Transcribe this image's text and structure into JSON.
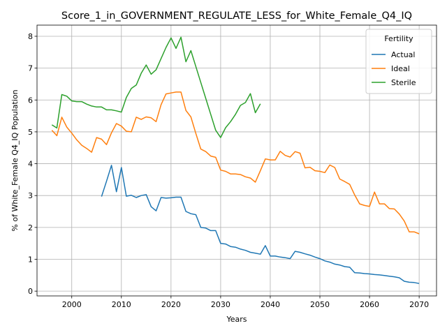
{
  "chart_data": {
    "type": "line",
    "title": "Score_1_in_GOVERNMENT_REGULATE_LESS_for_White_Female_Q4_IQ",
    "xlabel": "Years",
    "ylabel": "% of White_Female Q4_IQ Population",
    "xlim": [
      1993,
      2073.5
    ],
    "ylim": [
      -0.15,
      8.35
    ],
    "xticks": [
      2000,
      2010,
      2020,
      2030,
      2040,
      2050,
      2060,
      2070
    ],
    "yticks": [
      0,
      1,
      2,
      3,
      4,
      5,
      6,
      7,
      8
    ],
    "grid": true,
    "legend": {
      "title": "Fertility",
      "position": "top-right"
    },
    "series": [
      {
        "name": "Actual",
        "color": "#1f77b4",
        "x": [
          2006,
          2007,
          2008,
          2009,
          2010,
          2011,
          2012,
          2013,
          2014,
          2015,
          2016,
          2017,
          2018,
          2019,
          2020,
          2021,
          2022,
          2023,
          2024,
          2025,
          2026,
          2027,
          2028,
          2029,
          2030,
          2031,
          2032,
          2033,
          2034,
          2035,
          2036,
          2037,
          2038,
          2039,
          2040,
          2041,
          2042,
          2043,
          2044,
          2045,
          2046,
          2047,
          2048,
          2049,
          2050,
          2051,
          2052,
          2053,
          2054,
          2055,
          2056,
          2057,
          2058,
          2059,
          2060,
          2061,
          2062,
          2063,
          2064,
          2065,
          2066,
          2067,
          2068,
          2069,
          2070
        ],
        "values": [
          2.97,
          3.45,
          3.95,
          3.12,
          3.88,
          2.98,
          3.01,
          2.94,
          3.0,
          3.03,
          2.65,
          2.52,
          2.94,
          2.92,
          2.93,
          2.95,
          2.95,
          2.5,
          2.43,
          2.4,
          2.0,
          1.98,
          1.9,
          1.9,
          1.5,
          1.48,
          1.4,
          1.38,
          1.32,
          1.28,
          1.22,
          1.19,
          1.16,
          1.43,
          1.1,
          1.1,
          1.07,
          1.05,
          1.02,
          1.25,
          1.22,
          1.17,
          1.13,
          1.07,
          1.02,
          0.95,
          0.91,
          0.85,
          0.82,
          0.77,
          0.75,
          0.58,
          0.57,
          0.55,
          0.54,
          0.52,
          0.51,
          0.49,
          0.47,
          0.45,
          0.42,
          0.31,
          0.28,
          0.27,
          0.24
        ]
      },
      {
        "name": "Ideal",
        "color": "#ff7f0e",
        "x": [
          1996,
          1997,
          1998,
          1999,
          2000,
          2001,
          2002,
          2003,
          2004,
          2005,
          2006,
          2007,
          2008,
          2009,
          2010,
          2011,
          2012,
          2013,
          2014,
          2015,
          2016,
          2017,
          2018,
          2019,
          2020,
          2021,
          2022,
          2023,
          2024,
          2025,
          2026,
          2027,
          2028,
          2029,
          2030,
          2031,
          2032,
          2033,
          2034,
          2035,
          2036,
          2037,
          2038,
          2039,
          2040,
          2041,
          2042,
          2043,
          2044,
          2045,
          2046,
          2047,
          2048,
          2049,
          2050,
          2051,
          2052,
          2053,
          2054,
          2055,
          2056,
          2057,
          2058,
          2059,
          2060,
          2061,
          2062,
          2063,
          2064,
          2065,
          2066,
          2067,
          2068,
          2069,
          2070
        ],
        "values": [
          5.05,
          4.88,
          5.46,
          5.15,
          4.96,
          4.75,
          4.58,
          4.48,
          4.36,
          4.82,
          4.77,
          4.6,
          4.97,
          5.26,
          5.18,
          5.02,
          5.0,
          5.46,
          5.39,
          5.47,
          5.44,
          5.32,
          5.85,
          6.19,
          6.22,
          6.25,
          6.25,
          5.67,
          5.47,
          4.95,
          4.46,
          4.38,
          4.24,
          4.2,
          3.8,
          3.76,
          3.68,
          3.68,
          3.66,
          3.59,
          3.55,
          3.42,
          3.78,
          4.15,
          4.12,
          4.12,
          4.39,
          4.26,
          4.21,
          4.38,
          4.33,
          3.87,
          3.89,
          3.78,
          3.76,
          3.72,
          3.96,
          3.88,
          3.52,
          3.44,
          3.35,
          3.02,
          2.74,
          2.69,
          2.66,
          3.11,
          2.74,
          2.74,
          2.59,
          2.58,
          2.42,
          2.2,
          1.86,
          1.86,
          1.8
        ]
      },
      {
        "name": "Sterile",
        "color": "#2ca02c",
        "x": [
          1996,
          1997,
          1998,
          1999,
          2000,
          2001,
          2002,
          2003,
          2004,
          2005,
          2006,
          2007,
          2008,
          2009,
          2010,
          2011,
          2012,
          2013,
          2014,
          2015,
          2016,
          2017,
          2018,
          2019,
          2020,
          2021,
          2022,
          2023,
          2024,
          2025,
          2026,
          2027,
          2028,
          2029,
          2030,
          2031,
          2032,
          2033,
          2034,
          2035,
          2036,
          2037,
          2038
        ],
        "values": [
          5.22,
          5.12,
          6.17,
          6.12,
          5.97,
          5.95,
          5.95,
          5.87,
          5.81,
          5.78,
          5.78,
          5.69,
          5.69,
          5.66,
          5.62,
          6.08,
          6.36,
          6.47,
          6.84,
          7.1,
          6.81,
          6.95,
          7.3,
          7.65,
          7.95,
          7.62,
          7.97,
          7.2,
          7.55,
          7.05,
          6.55,
          6.05,
          5.55,
          5.05,
          4.82,
          5.13,
          5.32,
          5.55,
          5.83,
          5.92,
          6.2,
          5.6,
          5.88
        ]
      }
    ]
  }
}
